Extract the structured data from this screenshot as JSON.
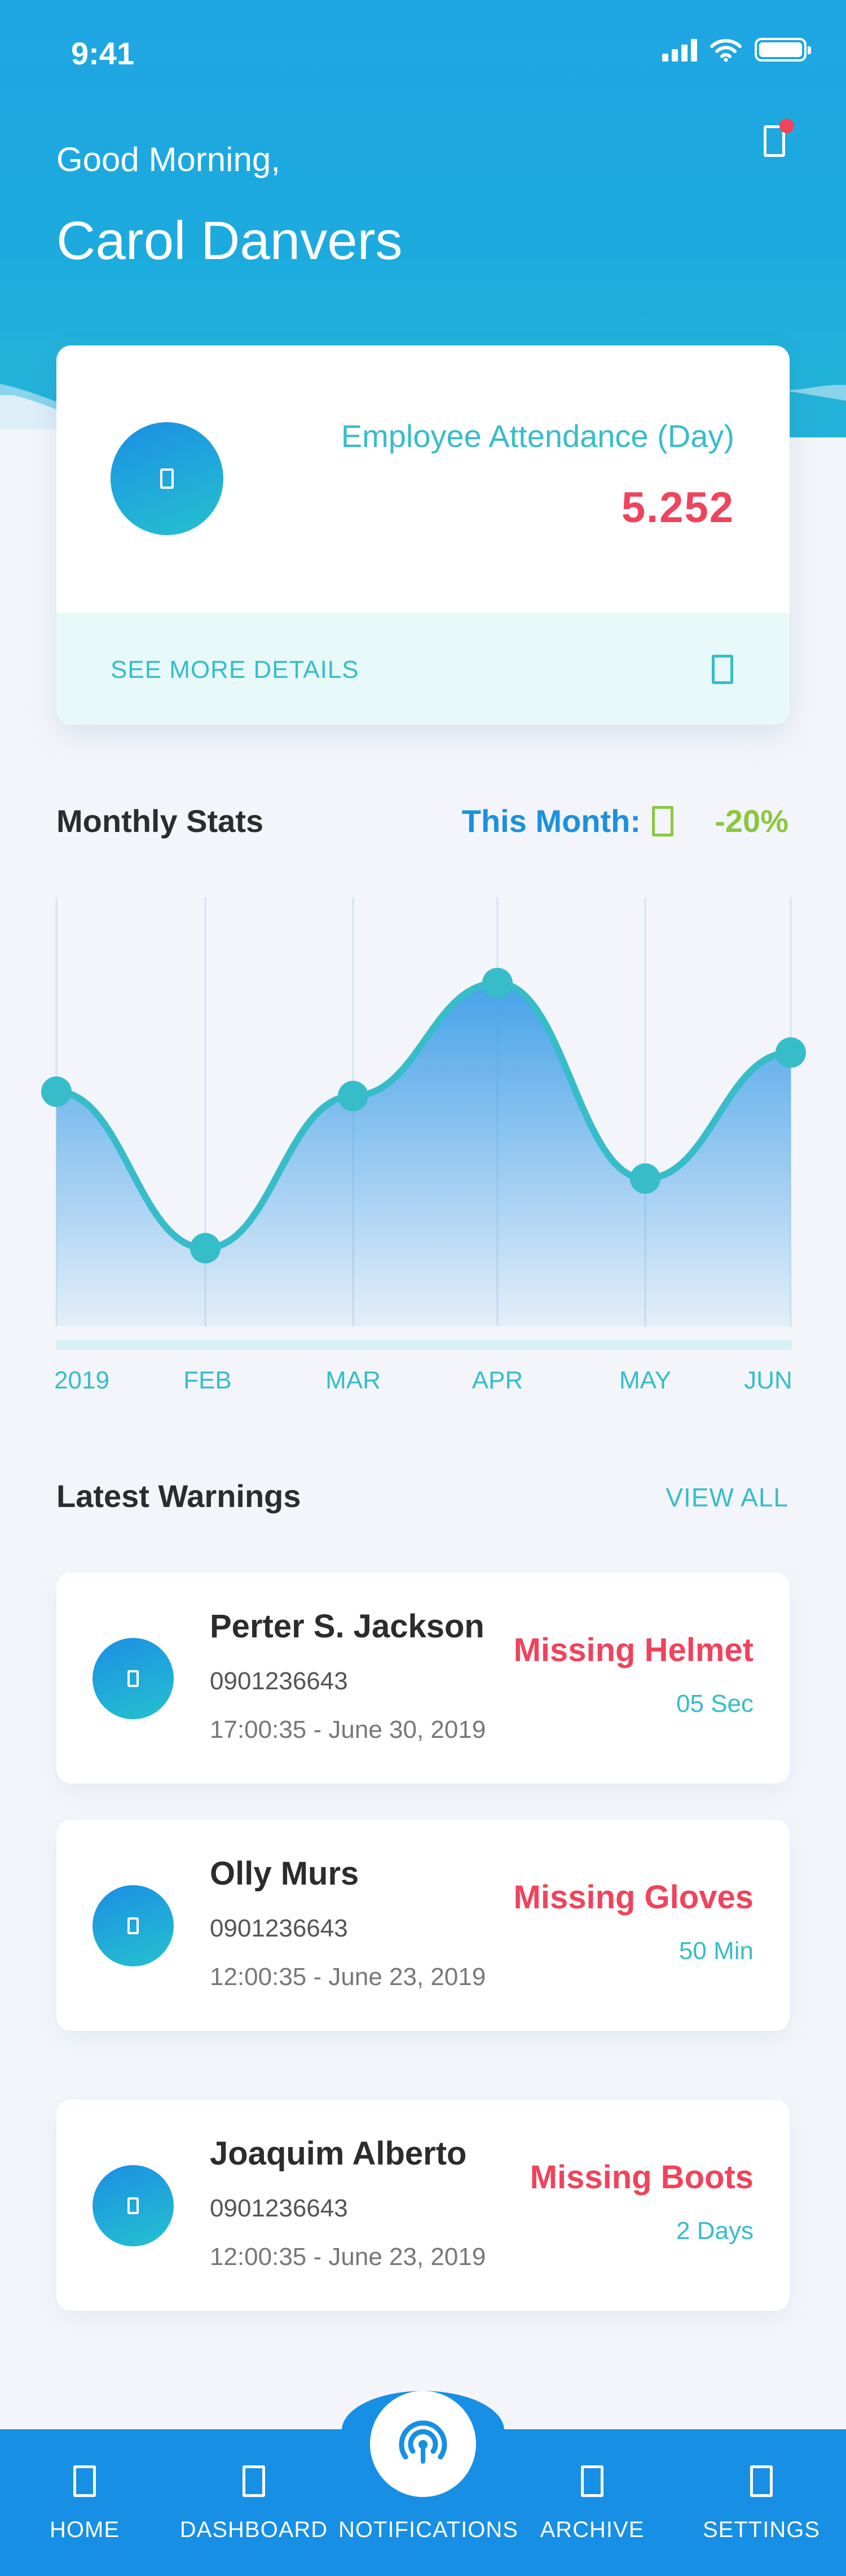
{
  "status_bar": {
    "time": "9:41"
  },
  "header": {
    "greeting": "Good Morning,",
    "user_name": "Carol Danvers",
    "notification_icon": "bell-icon"
  },
  "attendance": {
    "label": "Employee Attendance (Day)",
    "value": "5.252",
    "icon": "attendance-icon",
    "see_more": "SEE MORE DETAILS"
  },
  "monthly_stats": {
    "title": "Monthly Stats",
    "this_month_label": "This Month:",
    "trend_icon": "trend-down-icon",
    "change": "-20%"
  },
  "chart_data": {
    "type": "area",
    "categories": [
      "2019",
      "FEB",
      "MAR",
      "APR",
      "MAY",
      "JUN"
    ],
    "values": [
      54,
      18,
      53,
      79,
      34,
      63
    ],
    "ylim": [
      0,
      100
    ],
    "grid": true,
    "legend": "none"
  },
  "warnings": {
    "title": "Latest Warnings",
    "view_all": "VIEW ALL",
    "items": [
      {
        "name": "Perter S. Jackson",
        "phone": "0901236643",
        "time": "17:00:35 - June 30, 2019",
        "type": "Missing Helmet",
        "ago": "05 Sec"
      },
      {
        "name": "Olly Murs",
        "phone": "0901236643",
        "time": "12:00:35 - June 23, 2019",
        "type": "Missing Gloves",
        "ago": "50 Min"
      },
      {
        "name": "Joaquim Alberto",
        "phone": "0901236643",
        "time": "12:00:35 - June 23, 2019",
        "type": "Missing Boots",
        "ago": "2 Days"
      }
    ]
  },
  "nav": {
    "items": [
      {
        "label": "HOME",
        "icon": "home-icon"
      },
      {
        "label": "DASHBOARD",
        "icon": "dashboard-icon"
      },
      {
        "label": "NOTIFICATIONS",
        "icon": "notifications-icon"
      },
      {
        "label": "ARCHIVE",
        "icon": "archive-icon"
      },
      {
        "label": "SETTINGS",
        "icon": "settings-icon"
      }
    ]
  },
  "colors": {
    "primary": "#1a91e0",
    "accent": "#36bdc9",
    "alert": "#f0435c",
    "positive": "#8cc63f",
    "background": "#f3f5fa"
  }
}
